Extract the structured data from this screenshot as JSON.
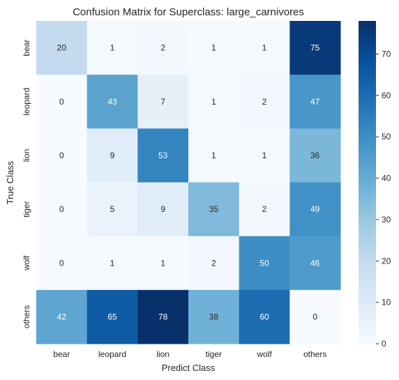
{
  "chart_data": {
    "type": "heatmap",
    "title": "Confusion Matrix for Superclass: large_carnivores",
    "xlabel": "Predict Class",
    "ylabel": "True Class",
    "x_categories": [
      "bear",
      "leopard",
      "lion",
      "tiger",
      "wolf",
      "others"
    ],
    "y_categories": [
      "bear",
      "leopard",
      "lion",
      "tiger",
      "wolf",
      "others"
    ],
    "values": [
      [
        20,
        1,
        2,
        1,
        1,
        75
      ],
      [
        0,
        43,
        7,
        1,
        2,
        47
      ],
      [
        0,
        9,
        53,
        1,
        1,
        36
      ],
      [
        0,
        5,
        9,
        35,
        2,
        49
      ],
      [
        0,
        1,
        1,
        2,
        50,
        46
      ],
      [
        42,
        65,
        78,
        38,
        60,
        0
      ]
    ],
    "colormap": "Blues",
    "colorbar": {
      "min": 0,
      "max": 78,
      "ticks": [
        "0",
        "10",
        "20",
        "30",
        "40",
        "50",
        "60",
        "70"
      ]
    }
  }
}
